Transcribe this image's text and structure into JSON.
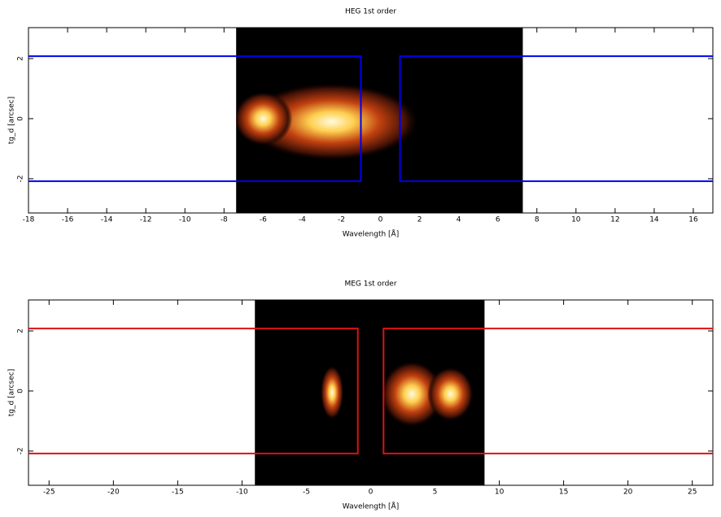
{
  "chart_data": [
    {
      "type": "image",
      "title": "HEG 1st order",
      "x_label": "Wavelength [Å]",
      "y_label": "tg_d [arcsec]",
      "xlim": [
        -18,
        17
      ],
      "ylim": [
        -3.14,
        3.03
      ],
      "xticks": [
        -18,
        -16,
        -14,
        -12,
        -10,
        -8,
        -6,
        -4,
        -2,
        0,
        2,
        4,
        6,
        8,
        10,
        12,
        14,
        16
      ],
      "yticks": [
        -2,
        0,
        2
      ],
      "image_xrange": [
        -7.38,
        7.28
      ],
      "blobs": [
        {
          "x": -2.5,
          "y": -0.1,
          "rx": 4.5,
          "ry": 1.3
        },
        {
          "x": -6,
          "y": 0,
          "rx": 1.5,
          "ry": 0.9
        }
      ],
      "regions": [
        {
          "x": [
            -18,
            -1,
            -1,
            -18
          ],
          "y": [
            2.08,
            2.08,
            -2.08,
            -2.08
          ]
        },
        {
          "x": [
            17,
            1,
            1,
            17
          ],
          "y": [
            2.08,
            2.08,
            -2.08,
            -2.08
          ]
        }
      ],
      "color": "#0000ee"
    },
    {
      "type": "image",
      "title": "MEG 1st order",
      "x_label": "Wavelength [Å]",
      "y_label": "tg_d [arcsec]",
      "xlim": [
        -26.6,
        26.6
      ],
      "ylim": [
        -3.14,
        3.03
      ],
      "xticks": [
        -25,
        -20,
        -15,
        -10,
        -5,
        0,
        5,
        10,
        15,
        20,
        25
      ],
      "yticks": [
        -2,
        0,
        2
      ],
      "image_xrange": [
        -9,
        8.85
      ],
      "blobs": [
        {
          "x": -3,
          "y": -0.05,
          "rx": 0.9,
          "ry": 0.9
        },
        {
          "x": 3.2,
          "y": -0.1,
          "rx": 2.4,
          "ry": 1.1
        },
        {
          "x": 6.2,
          "y": -0.1,
          "rx": 1.8,
          "ry": 0.9
        }
      ],
      "regions": [
        {
          "x": [
            -26.6,
            -1,
            -1,
            -26.6
          ],
          "y": [
            2.08,
            2.08,
            -2.08,
            -2.08
          ]
        },
        {
          "x": [
            26.6,
            1,
            1,
            26.6
          ],
          "y": [
            2.08,
            2.08,
            -2.08,
            -2.08
          ]
        }
      ],
      "color": "#dd1111"
    }
  ]
}
